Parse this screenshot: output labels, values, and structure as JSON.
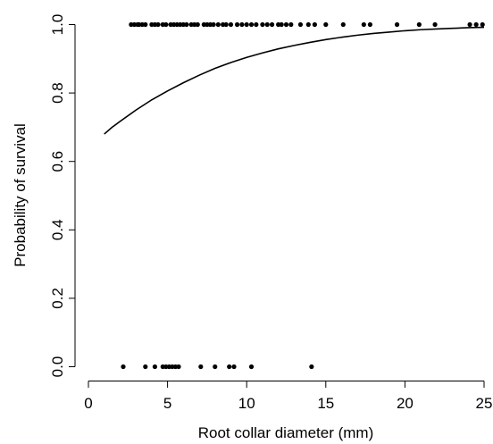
{
  "chart_data": {
    "type": "scatter",
    "title": "",
    "xlabel": "Root collar diameter (mm)",
    "ylabel": "Probability of survival",
    "xlim": [
      0,
      25
    ],
    "ylim": [
      0,
      1
    ],
    "x_ticks": [
      0,
      5,
      10,
      15,
      20,
      25
    ],
    "y_ticks": [
      0.0,
      0.2,
      0.4,
      0.6,
      0.8,
      1.0
    ],
    "x_tick_labels": [
      "0",
      "5",
      "10",
      "15",
      "20",
      "25"
    ],
    "y_tick_labels": [
      "0.0",
      "0.2",
      "0.4",
      "0.6",
      "0.8",
      "1.0"
    ],
    "grid": false,
    "series": [
      {
        "type": "scatter",
        "x": [
          2.7,
          2.9,
          3.1,
          3.2,
          3.4,
          3.6,
          4.0,
          4.2,
          4.4,
          4.7,
          4.9,
          5.2,
          5.4,
          5.6,
          5.8,
          6.0,
          6.2,
          6.5,
          6.7,
          6.9,
          7.3,
          7.5,
          7.7,
          7.9,
          8.2,
          8.5,
          8.7,
          9.0,
          9.4,
          9.7,
          10.0,
          10.3,
          10.6,
          11.0,
          11.3,
          11.6,
          12.0,
          12.2,
          12.5,
          12.8,
          13.4,
          13.9,
          14.3,
          15.0,
          16.1,
          17.4,
          17.8,
          19.5,
          20.9,
          21.9,
          24.1,
          24.5,
          24.9,
          2.2,
          3.6,
          4.2,
          4.7,
          4.9,
          5.1,
          5.3,
          5.5,
          5.7,
          7.1,
          8.0,
          8.9,
          9.2,
          10.3,
          14.1
        ],
        "y": [
          1,
          1,
          1,
          1,
          1,
          1,
          1,
          1,
          1,
          1,
          1,
          1,
          1,
          1,
          1,
          1,
          1,
          1,
          1,
          1,
          1,
          1,
          1,
          1,
          1,
          1,
          1,
          1,
          1,
          1,
          1,
          1,
          1,
          1,
          1,
          1,
          1,
          1,
          1,
          1,
          1,
          1,
          1,
          1,
          1,
          1,
          1,
          1,
          1,
          1,
          1,
          1,
          1,
          0,
          0,
          0,
          0,
          0,
          0,
          0,
          0,
          0,
          0,
          0,
          0,
          0,
          0,
          0
        ]
      },
      {
        "type": "line",
        "x": [
          1,
          1.5,
          2,
          3,
          4,
          5,
          6,
          7,
          8,
          9,
          10,
          11,
          12,
          13,
          14,
          15,
          16,
          17,
          18,
          19,
          20,
          21,
          22,
          23,
          24,
          25
        ],
        "y": [
          0.68,
          0.7,
          0.717,
          0.75,
          0.78,
          0.806,
          0.83,
          0.852,
          0.872,
          0.889,
          0.904,
          0.917,
          0.929,
          0.939,
          0.948,
          0.956,
          0.963,
          0.969,
          0.974,
          0.978,
          0.982,
          0.985,
          0.987,
          0.989,
          0.991,
          0.992
        ]
      }
    ]
  }
}
